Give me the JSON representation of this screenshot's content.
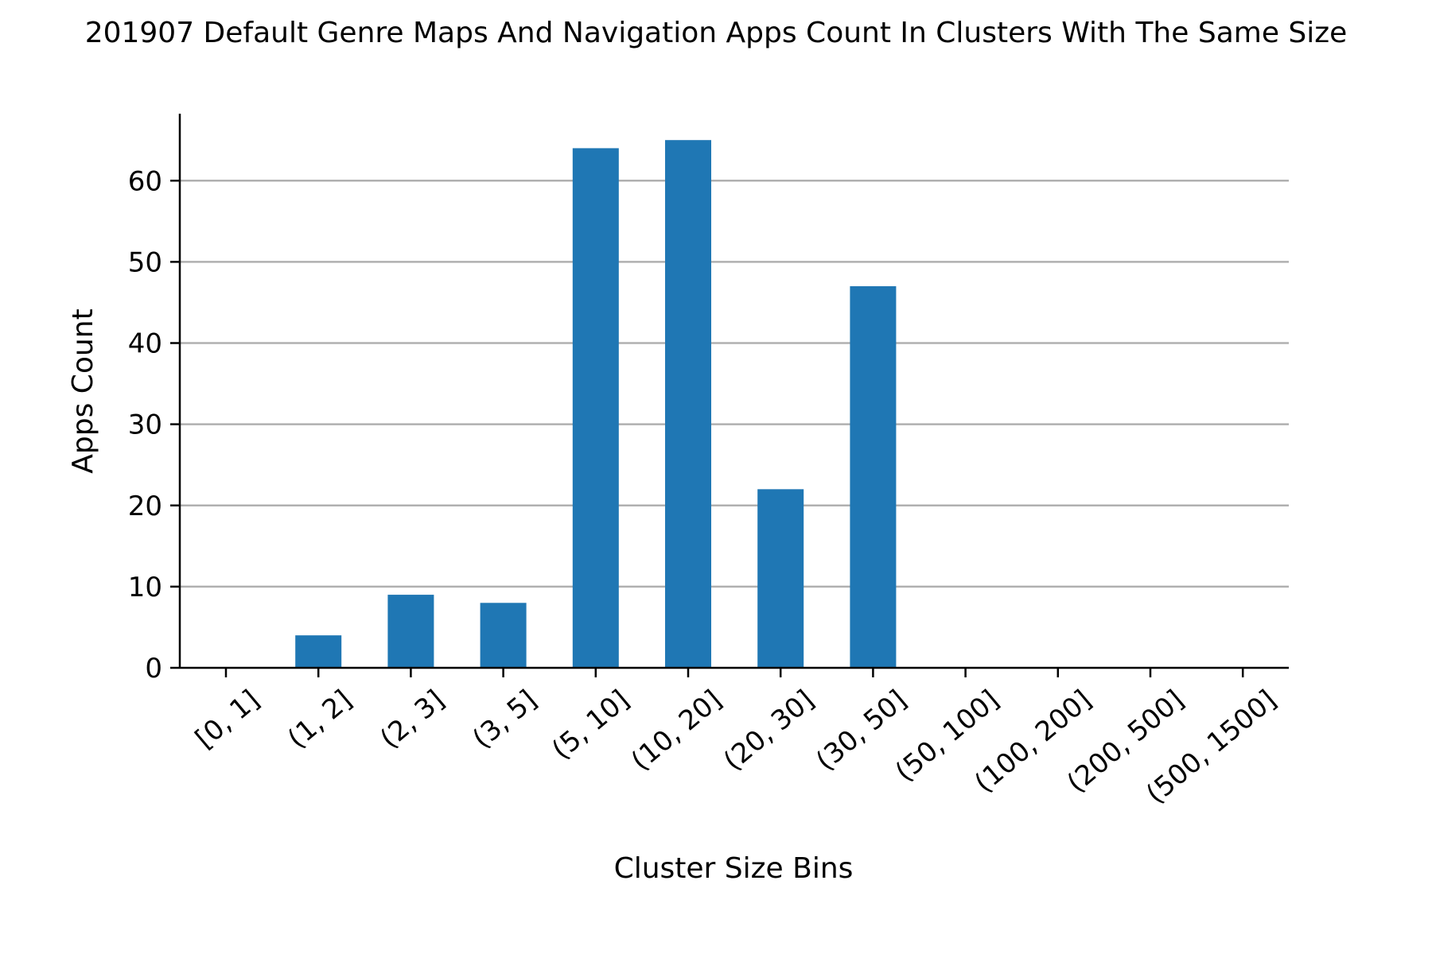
{
  "chart_data": {
    "type": "bar",
    "title": "201907 Default Genre Maps And Navigation Apps Count In Clusters With The Same Size",
    "xlabel": "Cluster Size Bins",
    "ylabel": "Apps Count",
    "categories": [
      "[0, 1]",
      "(1, 2]",
      "(2, 3]",
      "(3, 5]",
      "(5, 10]",
      "(10, 20]",
      "(20, 30]",
      "(30, 50]",
      "(50, 100]",
      "(100, 200]",
      "(200, 500]",
      "(500, 1500]"
    ],
    "values": [
      0,
      4,
      9,
      8,
      64,
      65,
      22,
      47,
      0,
      0,
      0,
      0
    ],
    "ylim": [
      0,
      68.25
    ],
    "yticks": [
      0,
      10,
      20,
      30,
      40,
      50,
      60
    ],
    "grid": "y",
    "legend": "none",
    "bar_color": "#1f77b4",
    "grid_color": "#b0b0b0"
  }
}
